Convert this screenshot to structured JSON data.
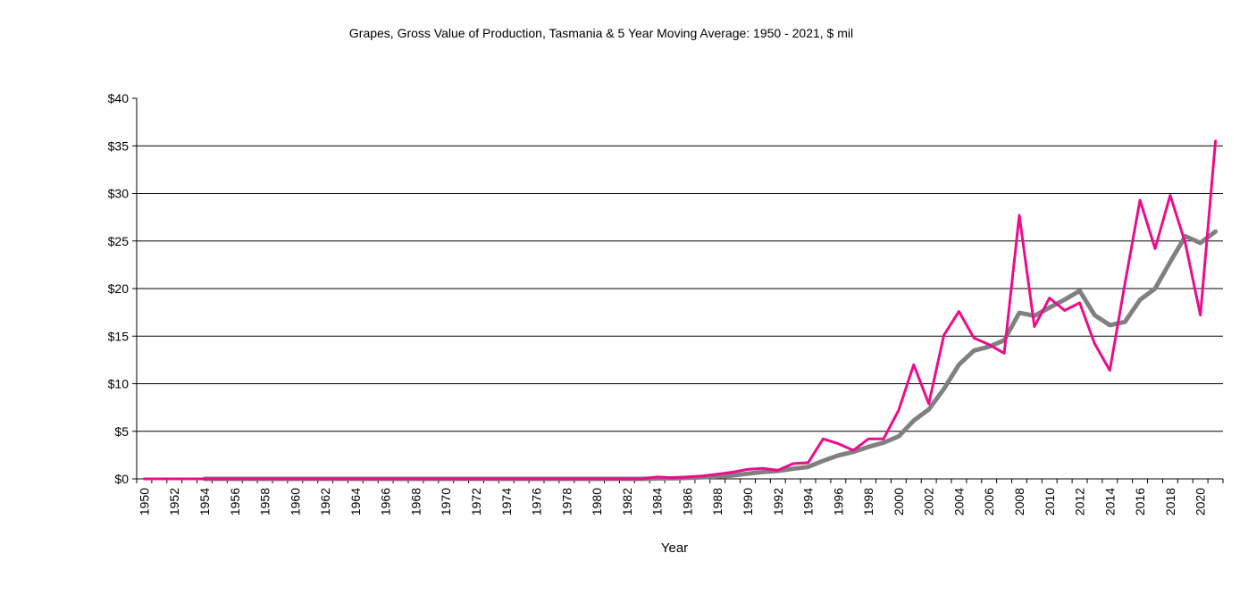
{
  "chart_data": {
    "type": "line",
    "title": "Grapes, Gross Value of Production, Tasmania & 5 Year Moving Average: 1950 - 2021, $ mil",
    "xlabel": "Year",
    "ylabel": "",
    "ylim": [
      0,
      40
    ],
    "yticks": [
      0,
      5,
      10,
      15,
      20,
      25,
      30,
      35,
      40
    ],
    "ytick_labels": [
      "$0",
      "$5",
      "$10",
      "$15",
      "$20",
      "$25",
      "$30",
      "$35",
      "$40"
    ],
    "grid": "horizontal",
    "legend": "none",
    "x": [
      1950,
      1951,
      1952,
      1953,
      1954,
      1955,
      1956,
      1957,
      1958,
      1959,
      1960,
      1961,
      1962,
      1963,
      1964,
      1965,
      1966,
      1967,
      1968,
      1969,
      1970,
      1971,
      1972,
      1973,
      1974,
      1975,
      1976,
      1977,
      1978,
      1979,
      1980,
      1981,
      1982,
      1983,
      1984,
      1985,
      1986,
      1987,
      1988,
      1989,
      1990,
      1991,
      1992,
      1993,
      1994,
      1995,
      1996,
      1997,
      1998,
      1999,
      2000,
      2001,
      2002,
      2003,
      2004,
      2005,
      2006,
      2007,
      2008,
      2009,
      2010,
      2011,
      2012,
      2013,
      2014,
      2015,
      2016,
      2017,
      2018,
      2019,
      2020,
      2021
    ],
    "xtick_labels": [
      "1950",
      "1952",
      "1954",
      "1956",
      "1958",
      "1960",
      "1962",
      "1964",
      "1966",
      "1968",
      "1970",
      "1972",
      "1974",
      "1976",
      "1978",
      "1980",
      "1982",
      "1984",
      "1986",
      "1988",
      "1990",
      "1992",
      "1994",
      "1996",
      "1998",
      "2000",
      "2002",
      "2004",
      "2006",
      "2008",
      "2010",
      "2012",
      "2014",
      "2016",
      "2018",
      "2020"
    ],
    "series": [
      {
        "name": "Gross Value of Production",
        "color": "#EC0C8C",
        "values": [
          0,
          0,
          0,
          0,
          0,
          0,
          0,
          0,
          0,
          0,
          0,
          0,
          0,
          0,
          0,
          0,
          0,
          0,
          0,
          0,
          0,
          0,
          0,
          0,
          0,
          0,
          0,
          0,
          0,
          0,
          0,
          0,
          0,
          0,
          0.2,
          0.1,
          0.2,
          0.3,
          0.5,
          0.7,
          1.0,
          1.1,
          0.9,
          1.6,
          1.7,
          4.2,
          3.7,
          3.0,
          4.2,
          4.2,
          7.2,
          12.0,
          7.9,
          15.1,
          17.6,
          14.8,
          14.1,
          13.2,
          27.7,
          16.0,
          19.0,
          17.7,
          18.5,
          14.2,
          11.4,
          20.5,
          29.3,
          24.2,
          29.8,
          24.8,
          17.2,
          35.5
        ]
      },
      {
        "name": "5 Year Moving Average",
        "color": "#808080",
        "values": [
          null,
          null,
          null,
          null,
          0,
          0,
          0,
          0,
          0,
          0,
          0,
          0,
          0,
          0,
          0,
          0,
          0,
          0,
          0,
          0,
          0,
          0,
          0,
          0,
          0,
          0,
          0,
          0,
          0,
          0,
          0,
          0,
          0,
          0,
          0.05,
          0.06,
          0.1,
          0.16,
          0.26,
          0.36,
          0.54,
          0.72,
          0.84,
          1.06,
          1.26,
          1.9,
          2.46,
          2.84,
          3.36,
          3.8,
          4.46,
          6.12,
          7.3,
          9.46,
          12.0,
          13.48,
          13.9,
          14.56,
          17.46,
          17.14,
          18.0,
          18.84,
          19.76,
          17.2,
          16.16,
          16.5,
          18.82,
          20.0,
          22.8,
          25.5,
          24.8,
          26.0
        ]
      }
    ]
  }
}
